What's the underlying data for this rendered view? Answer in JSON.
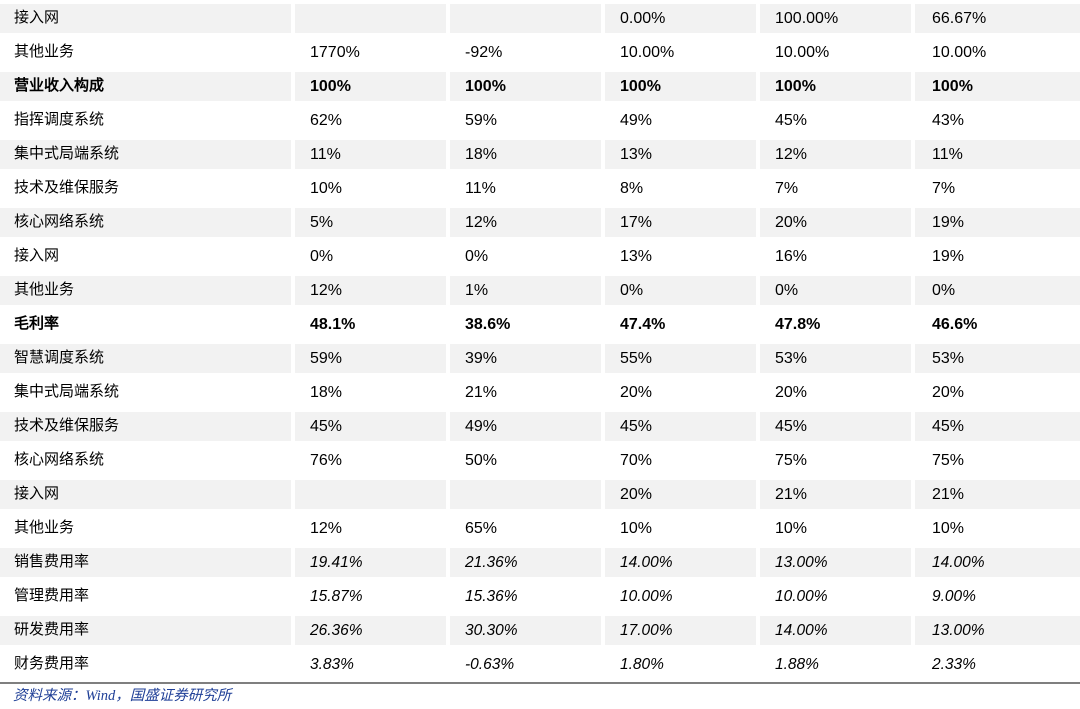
{
  "table": {
    "description": "financial-ratio-assumption-table",
    "num_value_columns": 5,
    "rows": [
      {
        "label": "接入网",
        "values": [
          "",
          "",
          "0.00%",
          "100.00%",
          "66.67%"
        ],
        "emphasis": "normal"
      },
      {
        "label": "其他业务",
        "values": [
          "1770%",
          "-92%",
          "10.00%",
          "10.00%",
          "10.00%"
        ],
        "emphasis": "normal"
      },
      {
        "label": "营业收入构成",
        "values": [
          "100%",
          "100%",
          "100%",
          "100%",
          "100%"
        ],
        "emphasis": "bold"
      },
      {
        "label": "指挥调度系统",
        "values": [
          "62%",
          "59%",
          "49%",
          "45%",
          "43%"
        ],
        "emphasis": "normal"
      },
      {
        "label": "集中式局端系统",
        "values": [
          "11%",
          "18%",
          "13%",
          "12%",
          "11%"
        ],
        "emphasis": "normal"
      },
      {
        "label": "技术及维保服务",
        "values": [
          "10%",
          "11%",
          "8%",
          "7%",
          "7%"
        ],
        "emphasis": "normal"
      },
      {
        "label": "核心网络系统",
        "values": [
          "5%",
          "12%",
          "17%",
          "20%",
          "19%"
        ],
        "emphasis": "normal"
      },
      {
        "label": "接入网",
        "values": [
          "0%",
          "0%",
          "13%",
          "16%",
          "19%"
        ],
        "emphasis": "normal"
      },
      {
        "label": "其他业务",
        "values": [
          "12%",
          "1%",
          "0%",
          "0%",
          "0%"
        ],
        "emphasis": "normal"
      },
      {
        "label": "毛利率",
        "values": [
          "48.1%",
          "38.6%",
          "47.4%",
          "47.8%",
          "46.6%"
        ],
        "emphasis": "bold"
      },
      {
        "label": "智慧调度系统",
        "values": [
          "59%",
          "39%",
          "55%",
          "53%",
          "53%"
        ],
        "emphasis": "normal"
      },
      {
        "label": "集中式局端系统",
        "values": [
          "18%",
          "21%",
          "20%",
          "20%",
          "20%"
        ],
        "emphasis": "normal"
      },
      {
        "label": "技术及维保服务",
        "values": [
          "45%",
          "49%",
          "45%",
          "45%",
          "45%"
        ],
        "emphasis": "normal"
      },
      {
        "label": "核心网络系统",
        "values": [
          "76%",
          "50%",
          "70%",
          "75%",
          "75%"
        ],
        "emphasis": "normal"
      },
      {
        "label": "接入网",
        "values": [
          "",
          "",
          "20%",
          "21%",
          "21%"
        ],
        "emphasis": "normal"
      },
      {
        "label": "其他业务",
        "values": [
          "12%",
          "65%",
          "10%",
          "10%",
          "10%"
        ],
        "emphasis": "normal"
      },
      {
        "label": "销售费用率",
        "values": [
          "19.41%",
          "21.36%",
          "14.00%",
          "13.00%",
          "14.00%"
        ],
        "emphasis": "italic"
      },
      {
        "label": "管理费用率",
        "values": [
          "15.87%",
          "15.36%",
          "10.00%",
          "10.00%",
          "9.00%"
        ],
        "emphasis": "italic"
      },
      {
        "label": "研发费用率",
        "values": [
          "26.36%",
          "30.30%",
          "17.00%",
          "14.00%",
          "13.00%"
        ],
        "emphasis": "italic"
      },
      {
        "label": "财务费用率",
        "values": [
          "3.83%",
          "-0.63%",
          "1.80%",
          "1.88%",
          "2.33%"
        ],
        "emphasis": "italic"
      }
    ]
  },
  "footer": {
    "source": "资料来源：Wind，国盛证券研究所"
  },
  "colors": {
    "row_shade": "#f2f2f2",
    "bottom_rule": "#7f7f7f",
    "source_text": "#1f3f97",
    "body_text": "#000000"
  }
}
